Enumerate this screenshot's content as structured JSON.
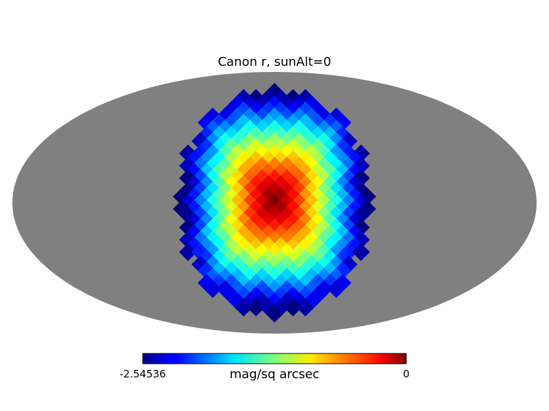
{
  "chart_data": {
    "type": "heatmap",
    "projection": "mollweide",
    "title": "Canon r, sunAlt=0",
    "colorbar": {
      "label": "mag/sq arcsec",
      "min": -2.54536,
      "max": 0,
      "min_label": "-2.54536",
      "max_label": "0",
      "colormap": "jet",
      "orientation": "horizontal"
    },
    "background_color": "#808080",
    "data": {
      "region": "visible hemisphere centered on projection center",
      "value_at_center": 0,
      "value_at_edge": -2.54536,
      "pattern": "petal-shaped HEALPix pixels"
    }
  }
}
